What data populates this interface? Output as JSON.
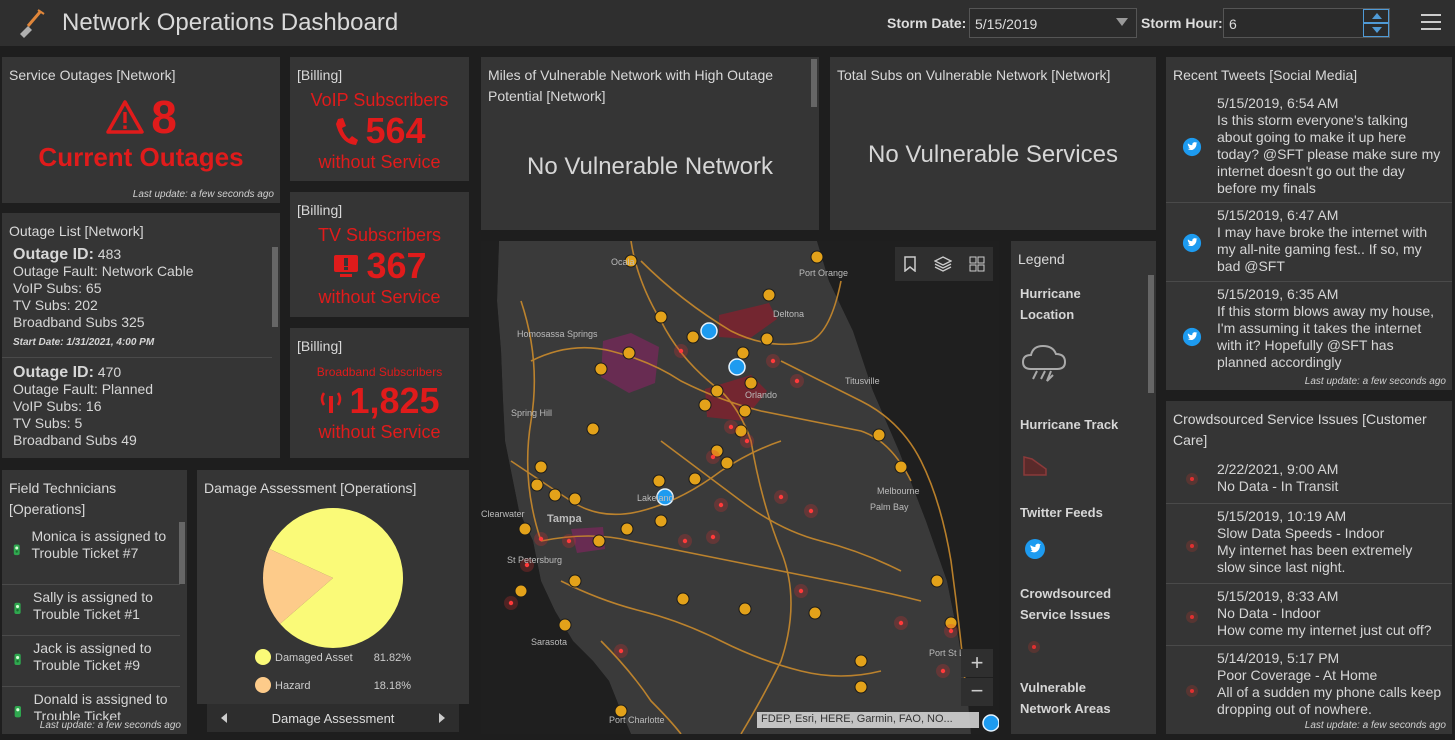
{
  "header": {
    "title": "Network Operations Dashboard",
    "storm_date_label": "Storm Date:",
    "storm_date_value": "5/15/2019",
    "storm_hour_label": "Storm Hour:",
    "storm_hour_value": "6"
  },
  "outages": {
    "title": "Service Outages [Network]",
    "count": "8",
    "caption": "Current Outages",
    "updated": "Last update: a few seconds ago"
  },
  "billing": [
    {
      "title": "[Billing]",
      "label": "VoIP Subscribers",
      "value": "564",
      "suffix": "without Service"
    },
    {
      "title": "[Billing]",
      "label": "TV Subscribers",
      "value": "367",
      "suffix": "without Service"
    },
    {
      "title": "[Billing]",
      "label": "Broadband Subscribers",
      "value": "1,825",
      "suffix": "without Service"
    }
  ],
  "miles_panel": {
    "title": "Miles of Vulnerable Network with High Outage Potential [Network]",
    "message": "No Vulnerable Network"
  },
  "subs_panel": {
    "title": "Total Subs on Vulnerable Network [Network]",
    "message": "No Vulnerable Services"
  },
  "outage_list": {
    "title": "Outage List [Network]",
    "items": [
      {
        "id_label": "Outage ID:",
        "id": "483",
        "fault": "Outage Fault: Network Cable",
        "voip": "VoIP Subs: 65",
        "tv": "TV Subs: 202",
        "bb": "Broadband Subs 325",
        "start": "Start Date: 1/31/2021, 4:00 PM"
      },
      {
        "id_label": "Outage ID:",
        "id": "470",
        "fault": "Outage Fault: Planned",
        "voip": "VoIP Subs: 16",
        "tv": "TV Subs: 5",
        "bb": "Broadband Subs 49"
      }
    ]
  },
  "technicians": {
    "title": "Field Technicians [Operations]",
    "items": [
      "Monica is assigned to Trouble Ticket #7",
      "Sally is assigned to Trouble Ticket #1",
      "Jack is assigned to Trouble Ticket #9",
      "Donald is assigned to Trouble Ticket"
    ],
    "updated": "Last update: a few seconds ago"
  },
  "damage": {
    "title": "Damage Assessment [Operations]",
    "nav_label": "Damage Assessment"
  },
  "chart_data": {
    "type": "pie",
    "categories": [
      "Damaged Asset",
      "Hazard"
    ],
    "values": [
      81.82,
      18.18
    ],
    "labels": [
      "81.82%",
      "18.18%"
    ],
    "colors": [
      "#fafa78",
      "#fdcb8a"
    ],
    "legend": "bottom"
  },
  "map": {
    "attribution": "FDEP, Esri, HERE, Garmin, FAO, NO...",
    "cities": [
      {
        "name": "Ocala"
      },
      {
        "name": "Port Orange"
      },
      {
        "name": "Deltona"
      },
      {
        "name": "Homosassa Springs"
      },
      {
        "name": "Titusville"
      },
      {
        "name": "Orlando"
      },
      {
        "name": "Spring Hill"
      },
      {
        "name": "Lakeland"
      },
      {
        "name": "Clearwater"
      },
      {
        "name": "Tampa"
      },
      {
        "name": "St Petersburg"
      },
      {
        "name": "Melbourne"
      },
      {
        "name": "Palm Bay"
      },
      {
        "name": "Sarasota"
      },
      {
        "name": "Port Charlotte"
      },
      {
        "name": "Port St Lucie"
      }
    ]
  },
  "legend": {
    "title": "Legend",
    "items": [
      "Hurricane Location",
      "Hurricane Track",
      "Twitter Feeds",
      "Crowdsourced Service Issues",
      "Vulnerable Network Areas"
    ]
  },
  "tweets": {
    "title": "Recent Tweets [Social Media]",
    "items": [
      {
        "time": "5/15/2019, 6:54 AM",
        "text": "Is this storm everyone's talking about going to make it up here today? @SFT please make sure my internet doesn't go out the day before my finals"
      },
      {
        "time": "5/15/2019, 6:47 AM",
        "text": "I may have broke the internet with my all-nite gaming fest.. If so, my bad @SFT"
      },
      {
        "time": "5/15/2019, 6:35 AM",
        "text": "If this storm blows away my house, I'm assuming it takes the internet with it? Hopefully @SFT has planned accordingly"
      }
    ],
    "updated": "Last update: a few seconds ago"
  },
  "crowd": {
    "title": "Crowdsourced Service Issues [Customer Care]",
    "items": [
      {
        "time": "2/22/2021, 9:00 AM",
        "line1": "No Data - In Transit",
        "line2": ""
      },
      {
        "time": "5/15/2019, 10:19 AM",
        "line1": "Slow Data Speeds - Indoor",
        "line2": "My internet has been extremely slow since last night."
      },
      {
        "time": "5/15/2019, 8:33 AM",
        "line1": "No Data - Indoor",
        "line2": "How come my internet just cut off?"
      },
      {
        "time": "5/14/2019, 5:17 PM",
        "line1": "Poor Coverage - At Home",
        "line2": "All of a sudden my phone calls keep dropping out of nowhere."
      }
    ],
    "updated": "Last update: a few seconds ago"
  }
}
